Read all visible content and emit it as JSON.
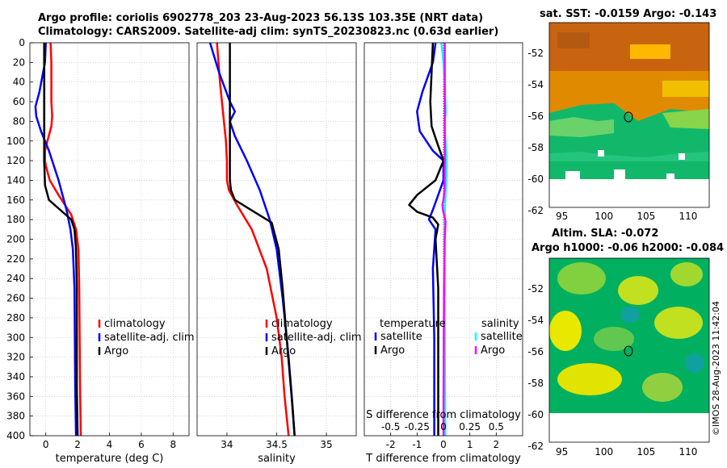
{
  "title": {
    "line1": "Argo profile: coriolis 6902778_203 23-Aug-2023 56.13S 103.35E (NRT data)",
    "line2": "Climatology: CARS2009. Satellite-adj clim: synTS_20230823.nc (0.63d earlier)"
  },
  "sst_map": {
    "title": "sat. SST: -0.0159 Argo: -0.143",
    "x_ticks": [
      "95",
      "100",
      "105",
      "110"
    ],
    "y_ticks": [
      "-52",
      "-54",
      "-56",
      "-58",
      "-60",
      "-62"
    ]
  },
  "sla_map": {
    "title1": "Altim. SLA: -0.072",
    "title2": "Argo h1000: -0.06 h2000: -0.084",
    "x_ticks": [
      "95",
      "100",
      "105",
      "110"
    ],
    "y_ticks": [
      "-52",
      "-54",
      "-56",
      "-58",
      "-60",
      "-62"
    ]
  },
  "watermark": "©IMOS 28-Aug-2023 11:42:04",
  "colors": {
    "climatology": "#ff0000",
    "satellite": "#0000ff",
    "argo": "#000000",
    "salinity_satellite": "#00ffff",
    "salinity_argo": "#ff00ff"
  },
  "chart_data": [
    {
      "type": "line",
      "id": "temperature",
      "xlabel": "temperature (deg C)",
      "ylabel": "",
      "xlim": [
        -1,
        9
      ],
      "ylim": [
        400,
        0
      ],
      "x_ticks": [
        0,
        2,
        4,
        6,
        8
      ],
      "y_ticks": [
        0,
        20,
        40,
        60,
        80,
        100,
        120,
        140,
        160,
        180,
        200,
        220,
        240,
        260,
        280,
        300,
        320,
        340,
        360,
        380,
        400
      ],
      "legend": [
        "climatology",
        "satellite-adj. clim",
        "Argo"
      ],
      "series": [
        {
          "name": "climatology",
          "color": "#ff0000",
          "x": [
            0.3,
            0.35,
            0.35,
            0.4,
            0.35,
            0.1,
            -0.05,
            -0.05,
            0.0,
            0.25,
            0.8,
            1.6,
            1.9,
            2.05,
            2.1,
            2.15,
            2.2
          ],
          "y": [
            0,
            20,
            60,
            75,
            85,
            100,
            110,
            120,
            125,
            140,
            155,
            175,
            190,
            210,
            250,
            350,
            400
          ]
        },
        {
          "name": "satellite-adj. clim",
          "color": "#0000ff",
          "x": [
            0.0,
            -0.05,
            -0.4,
            -0.65,
            -0.6,
            -0.3,
            0.2,
            0.8,
            1.3,
            1.55,
            1.7,
            1.8,
            1.85,
            1.9
          ],
          "y": [
            0,
            20,
            50,
            65,
            75,
            90,
            110,
            140,
            170,
            190,
            210,
            250,
            350,
            400
          ]
        },
        {
          "name": "Argo",
          "color": "#000000",
          "x": [
            -0.1,
            -0.1,
            -0.1,
            -0.1,
            -0.05,
            0.2,
            0.9,
            1.6,
            1.8,
            1.9,
            1.95,
            1.95,
            2.0
          ],
          "y": [
            0,
            40,
            80,
            120,
            145,
            160,
            170,
            180,
            190,
            210,
            250,
            350,
            400
          ]
        }
      ]
    },
    {
      "type": "line",
      "id": "salinity",
      "xlabel": "salinity",
      "xlim": [
        33.7,
        35.3
      ],
      "ylim": [
        400,
        0
      ],
      "x_ticks": [
        34,
        34.5,
        35
      ],
      "legend": [
        "climatology",
        "satellite-adj. clim",
        "Argo"
      ],
      "series": [
        {
          "name": "climatology",
          "color": "#ff0000",
          "x": [
            33.9,
            33.93,
            33.97,
            33.99,
            34.0,
            34.0,
            34.02,
            34.1,
            34.25,
            34.4,
            34.5,
            34.55,
            34.58,
            34.62
          ],
          "y": [
            0,
            40,
            80,
            100,
            120,
            140,
            150,
            165,
            190,
            230,
            280,
            320,
            360,
            400
          ]
        },
        {
          "name": "satellite-adj. clim",
          "color": "#0000ff",
          "x": [
            33.83,
            33.92,
            34.03,
            34.08,
            34.03,
            34.08,
            34.2,
            34.33,
            34.43,
            34.5,
            34.56,
            34.62,
            34.66,
            34.68
          ],
          "y": [
            0,
            30,
            60,
            70,
            80,
            95,
            120,
            150,
            180,
            210,
            260,
            320,
            370,
            400
          ]
        },
        {
          "name": "Argo",
          "color": "#000000",
          "x": [
            34.03,
            34.03,
            34.03,
            34.03,
            34.03,
            34.04,
            34.08,
            34.32,
            34.45,
            34.52,
            34.56,
            34.6,
            34.65,
            34.68
          ],
          "y": [
            0,
            40,
            80,
            120,
            140,
            150,
            160,
            175,
            183,
            210,
            250,
            300,
            360,
            400
          ]
        }
      ]
    },
    {
      "type": "line",
      "id": "difference",
      "xlabel": "T difference from climatology",
      "x2label": "S difference from climatology",
      "xlim": [
        -3,
        3
      ],
      "x2lim": [
        -0.75,
        0.75
      ],
      "ylim": [
        400,
        0
      ],
      "x_ticks": [
        -2,
        -1,
        0,
        1,
        2
      ],
      "x2_ticks": [
        "-0.5",
        "-0.25",
        "0",
        "0.25",
        "0.5"
      ],
      "legend_temperature_title": "temperature",
      "legend_salinity_title": "salinity",
      "legend_temperature": [
        "satellite",
        "Argo"
      ],
      "legend_salinity": [
        "satellite",
        "Argo"
      ],
      "series": [
        {
          "name": "T satellite",
          "color": "#0000ff",
          "x": [
            -0.3,
            -0.4,
            -0.8,
            -1.0,
            -0.9,
            -0.4,
            0.0,
            0.0,
            -0.4,
            -0.55,
            -0.3,
            -0.4,
            -0.35,
            -0.35,
            -0.35
          ],
          "y": [
            0,
            20,
            50,
            70,
            90,
            110,
            120,
            140,
            170,
            180,
            190,
            230,
            300,
            360,
            400
          ]
        },
        {
          "name": "T Argo",
          "color": "#000000",
          "x": [
            -0.4,
            -0.45,
            -0.5,
            -0.45,
            -0.2,
            0.0,
            -0.3,
            -1.0,
            -1.3,
            -1.0,
            -0.4,
            -0.2,
            -0.3,
            -0.2,
            -0.2,
            -0.2
          ],
          "y": [
            0,
            30,
            60,
            85,
            105,
            120,
            140,
            155,
            165,
            172,
            178,
            185,
            200,
            250,
            350,
            400
          ]
        },
        {
          "name": "S satellite",
          "color": "#00ffff",
          "x": [
            -0.08,
            0.0,
            0.06,
            0.09,
            0.04,
            0.08,
            0.12,
            0.1,
            0.06,
            0.04,
            0.04,
            0.05,
            0.06,
            0.07
          ],
          "y": [
            0,
            20,
            50,
            70,
            85,
            100,
            120,
            140,
            165,
            185,
            220,
            300,
            360,
            400
          ]
        },
        {
          "name": "S Argo",
          "color": "#ff00ff",
          "x": [
            0.05,
            0.05,
            0.05,
            0.04,
            0.04,
            0.0,
            -0.04,
            -0.02,
            0.08,
            0.05,
            0.02,
            0.01,
            0.0,
            0.0
          ],
          "y": [
            0,
            60,
            120,
            140,
            150,
            160,
            165,
            170,
            182,
            200,
            250,
            320,
            380,
            400
          ]
        }
      ]
    }
  ]
}
